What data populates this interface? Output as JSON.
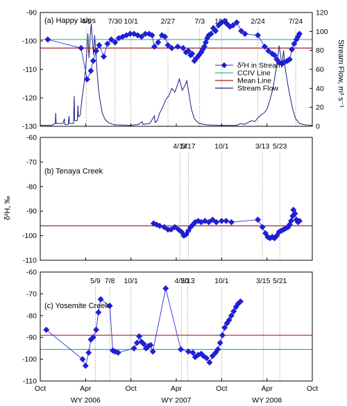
{
  "chart_data": {
    "type": "line",
    "x_axis": {
      "ticks": [
        {
          "label": "Oct",
          "t": 0
        },
        {
          "label": "Apr",
          "t": 6
        },
        {
          "label": "Oct",
          "t": 12
        },
        {
          "label": "Apr",
          "t": 18
        },
        {
          "label": "Oct",
          "t": 24
        },
        {
          "label": "Apr",
          "t": 30
        },
        {
          "label": "Oct",
          "t": 36
        }
      ],
      "range": [
        0,
        36
      ],
      "water_years": [
        {
          "label": "WY 2006",
          "t": 6
        },
        {
          "label": "WY 2007",
          "t": 18
        },
        {
          "label": "WY 2008",
          "t": 30
        }
      ]
    },
    "shared_ylabel": "δ²H, ‰",
    "panels": [
      {
        "title": "(a) Happy Isles",
        "ylim": [
          -130,
          -90
        ],
        "yticks": [
          -130,
          -120,
          -110,
          -100,
          -90
        ],
        "y2label": "Stream Flow, m³ s⁻¹",
        "y2lim": [
          0,
          120
        ],
        "y2ticks": [
          0,
          20,
          40,
          60,
          80,
          100,
          120
        ],
        "events": [
          {
            "label": "4/5",
            "t": 6.1
          },
          {
            "label": "7/30",
            "t": 9.9
          },
          {
            "label": "10/1",
            "t": 12.0
          },
          {
            "label": "2/27",
            "t": 16.9
          },
          {
            "label": "7/3",
            "t": 21.1
          },
          {
            "label": "10/1",
            "t": 24.0
          },
          {
            "label": "2/24",
            "t": 28.8
          },
          {
            "label": "7/24",
            "t": 33.8
          }
        ],
        "lines": [
          {
            "name": "CCIV Line",
            "value": -99.5,
            "color": "#2ab0b0"
          },
          {
            "name": "Mean Line",
            "value": -102.5,
            "color": "#a02020"
          }
        ],
        "legend": [
          "δ²H in Stream",
          "CCIV Line",
          "Mean Line",
          "Stream Flow"
        ],
        "isotope": [
          [
            1.0,
            -99.5
          ],
          [
            5.4,
            -102.5
          ],
          [
            6.2,
            -113.5
          ],
          [
            6.7,
            -110.5
          ],
          [
            7.0,
            -107.0
          ],
          [
            7.4,
            -103.5
          ],
          [
            7.8,
            -101.5
          ],
          [
            8.4,
            -105.5
          ],
          [
            8.9,
            -101.0
          ],
          [
            9.4,
            -99.5
          ],
          [
            9.9,
            -100.5
          ],
          [
            10.4,
            -99.0
          ],
          [
            10.9,
            -98.5
          ],
          [
            11.4,
            -98.0
          ],
          [
            11.9,
            -97.5
          ],
          [
            12.4,
            -97.5
          ],
          [
            12.9,
            -98.0
          ],
          [
            13.4,
            -98.5
          ],
          [
            13.9,
            -97.5
          ],
          [
            14.4,
            -97.5
          ],
          [
            14.8,
            -98.0
          ],
          [
            15.1,
            -102.0
          ],
          [
            15.6,
            -100.5
          ],
          [
            16.1,
            -98.0
          ],
          [
            16.5,
            -98.5
          ],
          [
            16.9,
            -101.5
          ],
          [
            17.4,
            -102.5
          ],
          [
            18.2,
            -102.0
          ],
          [
            18.9,
            -102.5
          ],
          [
            19.3,
            -104.0
          ],
          [
            19.6,
            -103.5
          ],
          [
            19.9,
            -105.0
          ],
          [
            20.1,
            -104.5
          ],
          [
            20.4,
            -107.0
          ],
          [
            20.7,
            -106.0
          ],
          [
            21.0,
            -105.0
          ],
          [
            21.3,
            -104.0
          ],
          [
            21.5,
            -103.0
          ],
          [
            21.7,
            -102.0
          ],
          [
            21.9,
            -100.5
          ],
          [
            22.1,
            -99.0
          ],
          [
            22.3,
            -98.0
          ],
          [
            22.6,
            -97.5
          ],
          [
            22.9,
            -95.5
          ],
          [
            23.2,
            -96.5
          ],
          [
            23.6,
            -94.5
          ],
          [
            24.0,
            -93.5
          ],
          [
            24.4,
            -93.0
          ],
          [
            24.7,
            -94.0
          ],
          [
            25.1,
            -95.0
          ],
          [
            25.5,
            -94.5
          ],
          [
            26.0,
            -93.5
          ],
          [
            26.6,
            -96.5
          ],
          [
            27.1,
            -97.5
          ],
          [
            28.8,
            -98.0
          ],
          [
            29.7,
            -102.0
          ],
          [
            30.2,
            -103.5
          ],
          [
            30.7,
            -104.5
          ],
          [
            31.0,
            -105.0
          ],
          [
            31.3,
            -106.5
          ],
          [
            31.6,
            -107.5
          ],
          [
            32.0,
            -108.0
          ],
          [
            32.3,
            -107.5
          ],
          [
            32.7,
            -107.0
          ],
          [
            33.0,
            -106.5
          ],
          [
            33.3,
            -103.0
          ],
          [
            33.6,
            -101.0
          ],
          [
            33.9,
            -99.5
          ],
          [
            34.1,
            -98.5
          ],
          [
            34.3,
            -97.5
          ]
        ],
        "flow": [
          [
            0,
            1
          ],
          [
            1.5,
            1
          ],
          [
            2.0,
            3
          ],
          [
            2.05,
            14
          ],
          [
            2.1,
            3
          ],
          [
            3.0,
            3
          ],
          [
            3.2,
            8
          ],
          [
            3.25,
            2
          ],
          [
            3.7,
            2
          ],
          [
            3.8,
            11
          ],
          [
            3.85,
            3
          ],
          [
            4.4,
            3
          ],
          [
            4.5,
            32
          ],
          [
            4.55,
            6
          ],
          [
            4.9,
            6
          ],
          [
            5.0,
            22
          ],
          [
            5.05,
            10
          ],
          [
            5.3,
            12
          ],
          [
            5.5,
            28
          ],
          [
            5.8,
            45
          ],
          [
            6.1,
            70
          ],
          [
            6.3,
            98
          ],
          [
            6.45,
            72
          ],
          [
            6.6,
            95
          ],
          [
            6.75,
            108
          ],
          [
            6.9,
            92
          ],
          [
            7.05,
            75
          ],
          [
            7.2,
            96
          ],
          [
            7.35,
            80
          ],
          [
            7.5,
            60
          ],
          [
            7.7,
            40
          ],
          [
            7.9,
            28
          ],
          [
            8.2,
            14
          ],
          [
            8.6,
            7
          ],
          [
            9.0,
            4
          ],
          [
            9.6,
            2
          ],
          [
            10,
            1.5
          ],
          [
            12,
            1
          ],
          [
            13.0,
            2
          ],
          [
            13.5,
            5
          ],
          [
            13.6,
            2
          ],
          [
            14.5,
            3
          ],
          [
            15.1,
            11
          ],
          [
            15.2,
            4
          ],
          [
            15.5,
            6
          ],
          [
            15.8,
            14
          ],
          [
            16.2,
            20
          ],
          [
            16.6,
            28
          ],
          [
            17.0,
            32
          ],
          [
            17.4,
            40
          ],
          [
            17.8,
            36
          ],
          [
            18.1,
            42
          ],
          [
            18.4,
            50
          ],
          [
            18.8,
            38
          ],
          [
            19.2,
            44
          ],
          [
            19.4,
            48
          ],
          [
            19.7,
            33
          ],
          [
            20.0,
            18
          ],
          [
            20.4,
            8
          ],
          [
            21,
            3
          ],
          [
            22,
            1.5
          ],
          [
            24,
            1
          ],
          [
            26,
            1
          ],
          [
            26.5,
            3
          ],
          [
            27.0,
            2
          ],
          [
            27.5,
            4
          ],
          [
            28.0,
            6
          ],
          [
            28.4,
            5
          ],
          [
            28.8,
            9
          ],
          [
            29.2,
            12
          ],
          [
            29.6,
            14
          ],
          [
            30.0,
            18
          ],
          [
            30.4,
            28
          ],
          [
            30.8,
            40
          ],
          [
            31.1,
            55
          ],
          [
            31.4,
            70
          ],
          [
            31.6,
            85
          ],
          [
            31.8,
            75
          ],
          [
            32.0,
            64
          ],
          [
            32.2,
            80
          ],
          [
            32.4,
            62
          ],
          [
            32.6,
            52
          ],
          [
            32.8,
            42
          ],
          [
            33.1,
            30
          ],
          [
            33.4,
            18
          ],
          [
            33.8,
            8
          ],
          [
            34.3,
            3
          ],
          [
            35,
            1.5
          ],
          [
            36,
            1
          ]
        ]
      },
      {
        "title": "(b) Tenaya Creek",
        "ylim": [
          -110,
          -60
        ],
        "yticks": [
          -110,
          -100,
          -90,
          -80,
          -70,
          -60
        ],
        "events": [
          {
            "label": "4/14",
            "t": 18.5
          },
          {
            "label": "5/17",
            "t": 19.6
          },
          {
            "label": "10/1",
            "t": 24.0
          },
          {
            "label": "3/13",
            "t": 29.4
          },
          {
            "label": "5/23",
            "t": 31.7
          }
        ],
        "lines": [
          {
            "name": "CCIV Line",
            "value": -96.0,
            "color": "#2ab0b0"
          },
          {
            "name": "Mean Line",
            "value": -96.0,
            "color": "#a02020"
          }
        ],
        "isotope": [
          [
            15.0,
            -95.0
          ],
          [
            15.4,
            -95.5
          ],
          [
            15.8,
            -96.0
          ],
          [
            16.4,
            -96.5
          ],
          [
            16.9,
            -97.5
          ],
          [
            17.3,
            -97.5
          ],
          [
            17.8,
            -96.5
          ],
          [
            18.3,
            -97.5
          ],
          [
            18.7,
            -98.5
          ],
          [
            19.0,
            -100.0
          ],
          [
            19.3,
            -99.5
          ],
          [
            19.6,
            -98.0
          ],
          [
            19.9,
            -96.5
          ],
          [
            20.2,
            -95.5
          ],
          [
            20.5,
            -94.5
          ],
          [
            20.9,
            -94.0
          ],
          [
            21.3,
            -94.5
          ],
          [
            21.8,
            -94.0
          ],
          [
            22.3,
            -94.5
          ],
          [
            22.8,
            -93.5
          ],
          [
            23.3,
            -94.5
          ],
          [
            24.0,
            -94.0
          ],
          [
            24.6,
            -94.0
          ],
          [
            25.3,
            -94.5
          ],
          [
            28.8,
            -93.5
          ],
          [
            29.4,
            -96.5
          ],
          [
            29.8,
            -99.0
          ],
          [
            30.1,
            -100.5
          ],
          [
            30.4,
            -101.0
          ],
          [
            30.7,
            -100.5
          ],
          [
            31.0,
            -101.0
          ],
          [
            31.3,
            -100.0
          ],
          [
            31.6,
            -98.5
          ],
          [
            31.9,
            -98.0
          ],
          [
            32.2,
            -97.5
          ],
          [
            32.5,
            -97.0
          ],
          [
            32.8,
            -96.5
          ],
          [
            33.0,
            -95.5
          ],
          [
            33.2,
            -94.0
          ],
          [
            33.4,
            -92.0
          ],
          [
            33.5,
            -89.5
          ],
          [
            33.7,
            -91.0
          ],
          [
            33.9,
            -93.5
          ],
          [
            34.1,
            -94.5
          ],
          [
            34.3,
            -94.0
          ]
        ]
      },
      {
        "title": "(c) Yosemite Creek",
        "ylim": [
          -110,
          -60
        ],
        "yticks": [
          -110,
          -100,
          -90,
          -80,
          -70,
          -60
        ],
        "events": [
          {
            "label": "5/9",
            "t": 7.3
          },
          {
            "label": "7/8",
            "t": 9.2
          },
          {
            "label": "10/1",
            "t": 12.0
          },
          {
            "label": "4/20",
            "t": 18.7
          },
          {
            "label": "5/13",
            "t": 19.5
          },
          {
            "label": "10/1",
            "t": 24.0
          },
          {
            "label": "3/15",
            "t": 29.5
          },
          {
            "label": "5/21",
            "t": 31.7
          }
        ],
        "lines": [
          {
            "name": "CCIV Line",
            "value": -95.5,
            "color": "#2ab0b0"
          },
          {
            "name": "Mean Line",
            "value": -89.0,
            "color": "#a02020"
          }
        ],
        "isotope": [
          [
            0.8,
            -86.5
          ],
          [
            5.6,
            -100.0
          ],
          [
            6.0,
            -103.0
          ],
          [
            6.4,
            -97.0
          ],
          [
            6.7,
            -91.0
          ],
          [
            7.0,
            -90.0
          ],
          [
            7.4,
            -86.5
          ],
          [
            7.7,
            -78.5
          ],
          [
            8.0,
            -72.5
          ],
          [
            9.2,
            -75.5
          ],
          [
            9.6,
            -96.0
          ],
          [
            9.9,
            -96.5
          ],
          [
            10.3,
            -97.0
          ],
          [
            12.4,
            -95.0
          ],
          [
            12.8,
            -92.5
          ],
          [
            13.1,
            -89.5
          ],
          [
            13.4,
            -92.0
          ],
          [
            13.7,
            -93.0
          ],
          [
            14.0,
            -95.0
          ],
          [
            14.3,
            -94.0
          ],
          [
            14.6,
            -93.5
          ],
          [
            14.9,
            -96.5
          ],
          [
            16.6,
            -67.5
          ],
          [
            18.6,
            -95.5
          ],
          [
            19.6,
            -96.5
          ],
          [
            20.2,
            -97.0
          ],
          [
            20.5,
            -99.0
          ],
          [
            20.9,
            -98.0
          ],
          [
            21.3,
            -97.5
          ],
          [
            21.6,
            -98.5
          ],
          [
            22.0,
            -99.5
          ],
          [
            22.4,
            -101.5
          ],
          [
            22.8,
            -98.5
          ],
          [
            23.2,
            -97.0
          ],
          [
            23.5,
            -95.5
          ],
          [
            23.8,
            -92.5
          ],
          [
            24.1,
            -89.0
          ],
          [
            24.4,
            -85.5
          ],
          [
            24.7,
            -83.5
          ],
          [
            25.0,
            -82.0
          ],
          [
            25.3,
            -80.0
          ],
          [
            25.6,
            -78.0
          ],
          [
            25.9,
            -76.0
          ],
          [
            26.2,
            -74.5
          ],
          [
            26.5,
            -73.5
          ]
        ]
      }
    ]
  }
}
